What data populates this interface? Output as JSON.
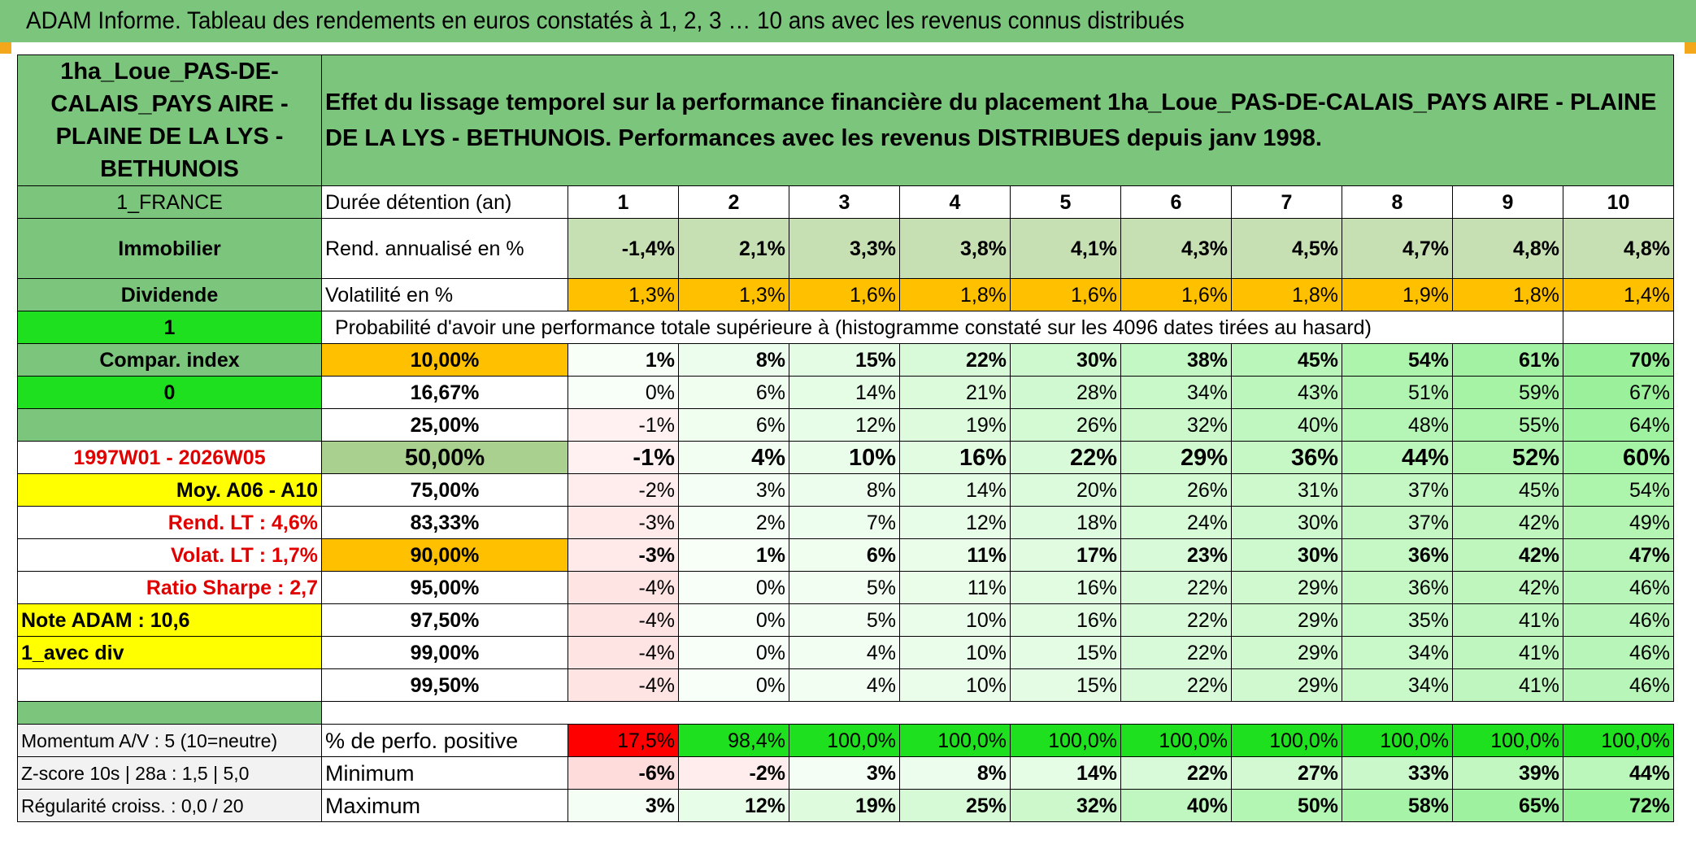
{
  "title": "ADAM Informe. Tableau des rendements en euros constatés à 1, 2, 3 … 10 ans avec les revenus connus distribués",
  "fund_name": "1ha_Loue_PAS-DE-CALAIS_PAYS AIRE - PLAINE DE LA LYS - BETHUNOIS",
  "description": "Effet du lissage temporel sur la performance financière du placement 1ha_Loue_PAS-DE-CALAIS_PAYS AIRE - PLAINE DE LA LYS - BETHUNOIS. Performances avec les revenus DISTRIBUES depuis janv 1998.",
  "left": {
    "country": "1_FRANCE",
    "category": "Immobilier",
    "type": "Dividende",
    "value1": "1",
    "compar_label": "Compar. index",
    "value0": "0",
    "period": "1997W01 - 2026W05",
    "moy": "Moy. A06 - A10",
    "rend_lt": "Rend. LT :   4,6%",
    "volat_lt": "Volat. LT :   1,7%",
    "sharpe": "Ratio Sharpe :    2,7",
    "note": "Note ADAM : 10,6",
    "div": "1_avec div",
    "momentum": "Momentum A/V : 5 (10=neutre)",
    "zscore": "Z-score 10s | 28a : 1,5 | 5,0",
    "regularite": "Régularité croiss. : 0,0 / 20"
  },
  "header": {
    "duree_label": "Durée détention (an)",
    "years": [
      "1",
      "2",
      "3",
      "4",
      "5",
      "6",
      "7",
      "8",
      "9",
      "10"
    ],
    "rend_label": "Rend. annualisé en %",
    "rend": [
      "-1,4%",
      "2,1%",
      "3,3%",
      "3,8%",
      "4,1%",
      "4,3%",
      "4,5%",
      "4,7%",
      "4,8%",
      "4,8%"
    ],
    "vol_label": "Volatilité en %",
    "vol": [
      "1,3%",
      "1,3%",
      "1,6%",
      "1,8%",
      "1,6%",
      "1,6%",
      "1,8%",
      "1,9%",
      "1,8%",
      "1,4%"
    ],
    "prob_label": "Probabilité d'avoir une performance totale supérieure à (histogramme constaté sur les 4096 dates tirées au hasard)"
  },
  "quantiles": [
    {
      "q": "10,00%",
      "vals": [
        "1%",
        "8%",
        "15%",
        "22%",
        "30%",
        "38%",
        "45%",
        "54%",
        "61%",
        "70%"
      ]
    },
    {
      "q": "16,67%",
      "vals": [
        "0%",
        "6%",
        "14%",
        "21%",
        "28%",
        "34%",
        "43%",
        "51%",
        "59%",
        "67%"
      ]
    },
    {
      "q": "25,00%",
      "vals": [
        "-1%",
        "6%",
        "12%",
        "19%",
        "26%",
        "32%",
        "40%",
        "48%",
        "55%",
        "64%"
      ]
    },
    {
      "q": "50,00%",
      "vals": [
        "-1%",
        "4%",
        "10%",
        "16%",
        "22%",
        "29%",
        "36%",
        "44%",
        "52%",
        "60%"
      ]
    },
    {
      "q": "75,00%",
      "vals": [
        "-2%",
        "3%",
        "8%",
        "14%",
        "20%",
        "26%",
        "31%",
        "37%",
        "45%",
        "54%"
      ]
    },
    {
      "q": "83,33%",
      "vals": [
        "-3%",
        "2%",
        "7%",
        "12%",
        "18%",
        "24%",
        "30%",
        "37%",
        "42%",
        "49%"
      ]
    },
    {
      "q": "90,00%",
      "vals": [
        "-3%",
        "1%",
        "6%",
        "11%",
        "17%",
        "23%",
        "30%",
        "36%",
        "42%",
        "47%"
      ]
    },
    {
      "q": "95,00%",
      "vals": [
        "-4%",
        "0%",
        "5%",
        "11%",
        "16%",
        "22%",
        "29%",
        "36%",
        "42%",
        "46%"
      ]
    },
    {
      "q": "97,50%",
      "vals": [
        "-4%",
        "0%",
        "5%",
        "10%",
        "16%",
        "22%",
        "29%",
        "35%",
        "41%",
        "46%"
      ]
    },
    {
      "q": "99,00%",
      "vals": [
        "-4%",
        "0%",
        "4%",
        "10%",
        "15%",
        "22%",
        "29%",
        "34%",
        "41%",
        "46%"
      ]
    },
    {
      "q": "99,50%",
      "vals": [
        "-4%",
        "0%",
        "4%",
        "10%",
        "15%",
        "22%",
        "29%",
        "34%",
        "41%",
        "46%"
      ]
    }
  ],
  "bottom": {
    "pos_label": "% de perfo. positive",
    "pos": [
      "17,5%",
      "98,4%",
      "100,0%",
      "100,0%",
      "100,0%",
      "100,0%",
      "100,0%",
      "100,0%",
      "100,0%",
      "100,0%"
    ],
    "min_label": "Minimum",
    "min": [
      "-6%",
      "-2%",
      "3%",
      "8%",
      "14%",
      "22%",
      "27%",
      "33%",
      "39%",
      "44%"
    ],
    "max_label": "Maximum",
    "max": [
      "3%",
      "12%",
      "19%",
      "25%",
      "32%",
      "40%",
      "50%",
      "58%",
      "65%",
      "72%"
    ]
  },
  "colors": {
    "title_bar": "#7cc57c",
    "label_green": "#7cc57c",
    "bright_green": "#1fe01f",
    "orange": "#ffc000",
    "yellow": "#ffff00",
    "red": "#ff0000"
  }
}
